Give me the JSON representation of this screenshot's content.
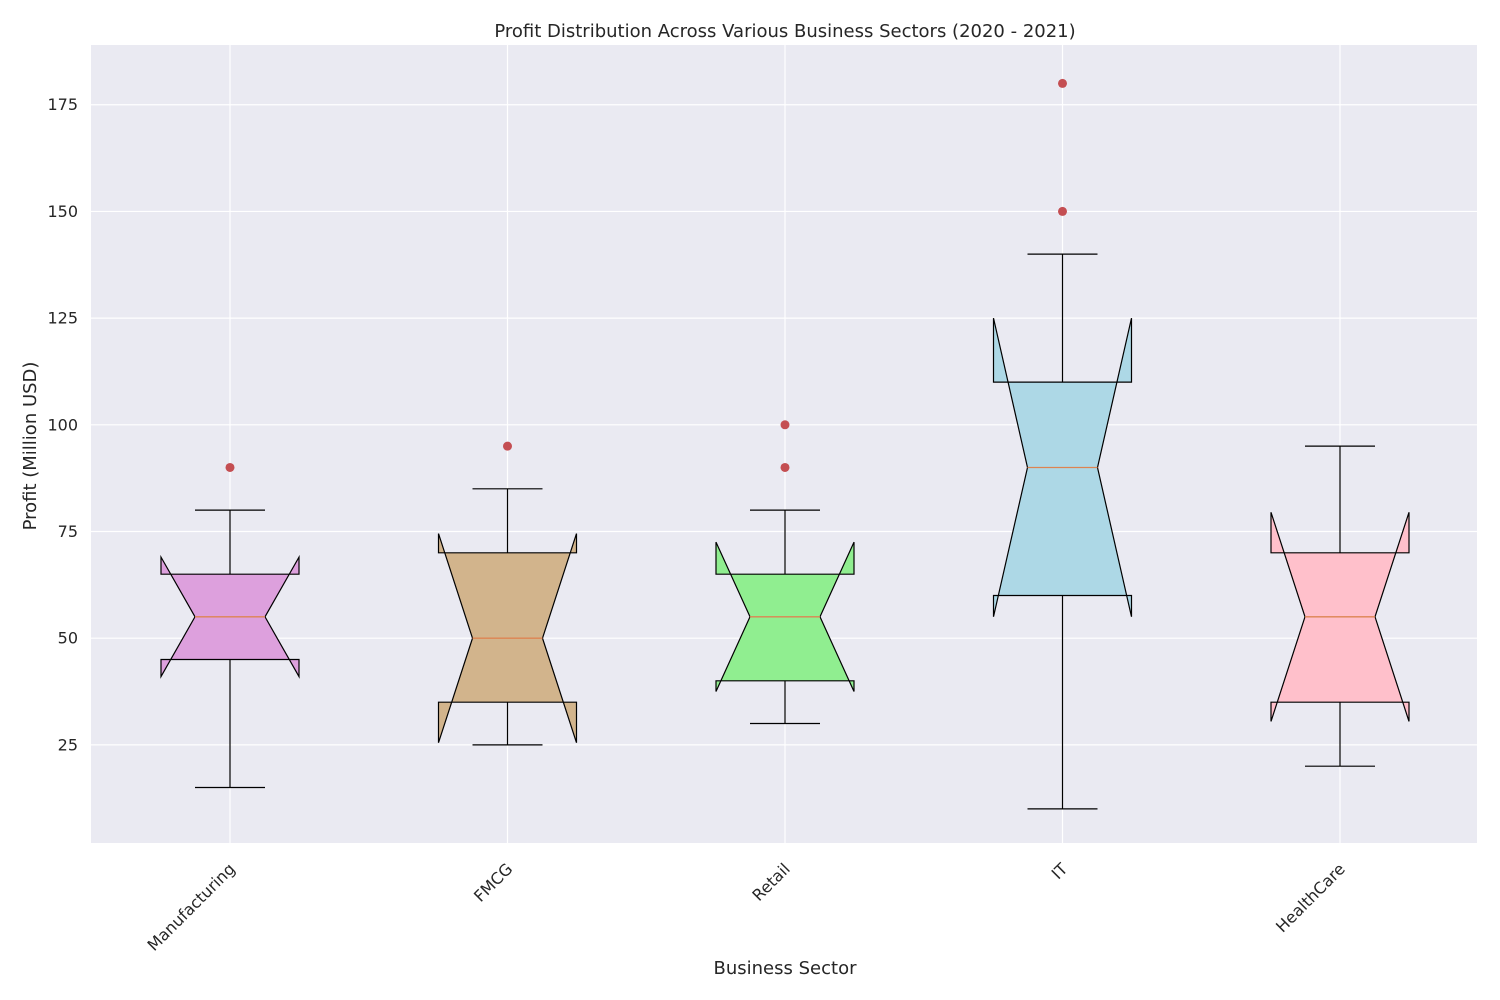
{
  "chart_data": {
    "type": "box",
    "title": "Profit Distribution Across Various Business Sectors (2020 - 2021)",
    "xlabel": "Business Sector",
    "ylabel": "Profit (Million USD)",
    "ylim": [
      2,
      189
    ],
    "yticks": [
      25,
      50,
      75,
      100,
      125,
      150,
      175
    ],
    "notched": true,
    "grid": true,
    "background": "#eaeaf2",
    "outlier_color": "#c44e52",
    "median_color": "#dd8452",
    "categories": [
      "Manufacturing",
      "FMCG",
      "Retail",
      "IT",
      "HealthCare"
    ],
    "boxes": [
      {
        "name": "Manufacturing",
        "color": "#dda0dd",
        "whisker_low": 15,
        "q1": 45,
        "median": 55,
        "q3": 65,
        "whisker_high": 80,
        "notch_low": 41,
        "notch_high": 69,
        "outliers": [
          90
        ]
      },
      {
        "name": "FMCG",
        "color": "#d2b48c",
        "whisker_low": 25,
        "q1": 35,
        "median": 50,
        "q3": 70,
        "whisker_high": 85,
        "notch_low": 25.5,
        "notch_high": 74.5,
        "outliers": [
          95
        ]
      },
      {
        "name": "Retail",
        "color": "#90ee90",
        "whisker_low": 30,
        "q1": 40,
        "median": 55,
        "q3": 65,
        "whisker_high": 80,
        "notch_low": 37.5,
        "notch_high": 72.5,
        "outliers": [
          90,
          100
        ]
      },
      {
        "name": "IT",
        "color": "#add8e6",
        "whisker_low": 10,
        "q1": 60,
        "median": 90,
        "q3": 110,
        "whisker_high": 140,
        "notch_low": 55,
        "notch_high": 125,
        "outliers": [
          150,
          180
        ]
      },
      {
        "name": "HealthCare",
        "color": "#ffc0cb",
        "whisker_low": 20,
        "q1": 35,
        "median": 55,
        "q3": 70,
        "whisker_high": 95,
        "notch_low": 30.5,
        "notch_high": 79.5,
        "outliers": []
      }
    ]
  }
}
